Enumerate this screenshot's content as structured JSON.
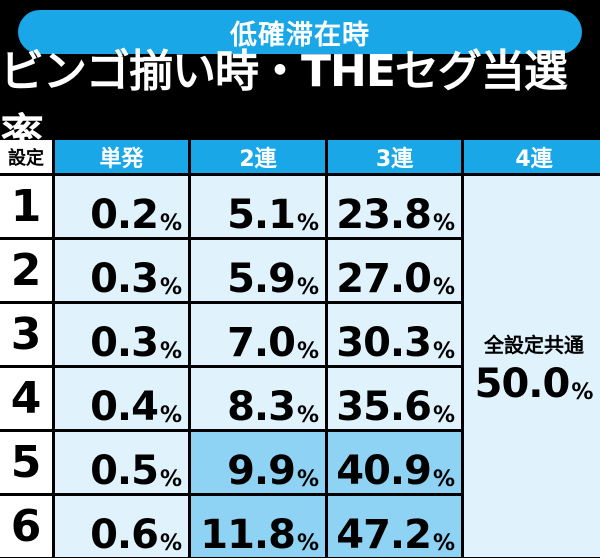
{
  "header": {
    "badge": "低確滞在時",
    "title": "ビンゴ揃い時・THEセグ当選率"
  },
  "table": {
    "corner": "設定",
    "columns": [
      "単発",
      "2連",
      "3連",
      "4連"
    ],
    "rows": [
      {
        "setting": "1",
        "values": [
          "0.2",
          "5.1",
          "23.8"
        ],
        "highlight": [
          false,
          false,
          false
        ]
      },
      {
        "setting": "2",
        "values": [
          "0.3",
          "5.9",
          "27.0"
        ],
        "highlight": [
          false,
          false,
          false
        ]
      },
      {
        "setting": "3",
        "values": [
          "0.3",
          "7.0",
          "30.3"
        ],
        "highlight": [
          false,
          false,
          false
        ]
      },
      {
        "setting": "4",
        "values": [
          "0.4",
          "8.3",
          "35.6"
        ],
        "highlight": [
          false,
          false,
          false
        ]
      },
      {
        "setting": "5",
        "values": [
          "0.5",
          "9.9",
          "40.9"
        ],
        "highlight": [
          false,
          true,
          true
        ]
      },
      {
        "setting": "6",
        "values": [
          "0.6",
          "11.8",
          "47.2"
        ],
        "highlight": [
          false,
          true,
          true
        ]
      }
    ],
    "unit": "%",
    "shared": {
      "label": "全設定共通",
      "value": "50.0"
    }
  },
  "colors": {
    "accent": "#1aa7e8",
    "cell": "#e0f3fc",
    "highlight": "#8fd3f4",
    "background": "#000000"
  }
}
